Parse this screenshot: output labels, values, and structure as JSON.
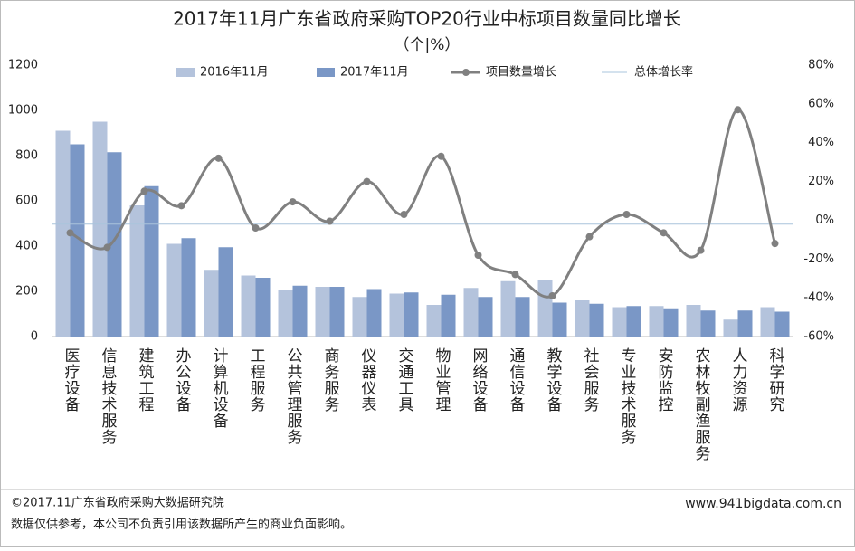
{
  "chart_data": {
    "type": "bar_line",
    "title": "2017年11月广东省政府采购TOP20行业中标项目数量同比增长",
    "subtitle": "（个|%）",
    "categories": [
      "医疗设备",
      "信息技术服务",
      "建筑工程",
      "办公设备",
      "计算机设备",
      "工程服务",
      "公共管理服务",
      "商务服务",
      "仪器仪表",
      "交通工具",
      "物业管理",
      "网络设备",
      "通信设备",
      "教学设备",
      "社会服务",
      "专业技术服务",
      "安防监控",
      "农林牧副渔服务",
      "人力资源",
      "科学研究"
    ],
    "series": [
      {
        "name": "2016年11月",
        "type": "bar",
        "color": "#b4c3dc",
        "values": [
          910,
          950,
          580,
          410,
          295,
          270,
          205,
          220,
          175,
          190,
          140,
          215,
          245,
          250,
          160,
          130,
          135,
          140,
          75,
          130
        ]
      },
      {
        "name": "2017年11月",
        "type": "bar",
        "color": "#7a97c6",
        "values": [
          850,
          815,
          665,
          435,
          395,
          260,
          225,
          220,
          210,
          195,
          185,
          175,
          175,
          150,
          145,
          135,
          125,
          115,
          115,
          110
        ]
      },
      {
        "name": "项目数量增长",
        "type": "line",
        "axis": "y2",
        "color": "#808080",
        "values": [
          -6.5,
          -14,
          15,
          7.5,
          32,
          -4,
          9.5,
          -0.5,
          20,
          3,
          33,
          -18,
          -28,
          -39,
          -8.5,
          3,
          -6.5,
          -15.5,
          57,
          -12
        ]
      }
    ],
    "reference_line": {
      "name": "总体增长率",
      "axis": "y2",
      "value": -2,
      "color": "#a9c4dc"
    },
    "ylim": [
      0,
      1200
    ],
    "yticks": [
      0,
      200,
      400,
      600,
      800,
      1000,
      1200
    ],
    "y2lim": [
      -60,
      80
    ],
    "y2ticks": [
      {
        "value": -60,
        "label": "-60%"
      },
      {
        "value": -40,
        "label": "-40%"
      },
      {
        "value": -20,
        "label": "-20%"
      },
      {
        "value": 0,
        "label": "0%"
      },
      {
        "value": 20,
        "label": "20%"
      },
      {
        "value": 40,
        "label": "40%"
      },
      {
        "value": 60,
        "label": "60%"
      },
      {
        "value": 80,
        "label": "80%"
      }
    ],
    "legend": "top"
  },
  "footer": {
    "source": "©2017.11广东省政府采购大数据研究院",
    "note": "数据仅供参考，本公司不负责引用该数据所产生的商业负面影响。",
    "website": "www.941bigdata.com.cn"
  }
}
